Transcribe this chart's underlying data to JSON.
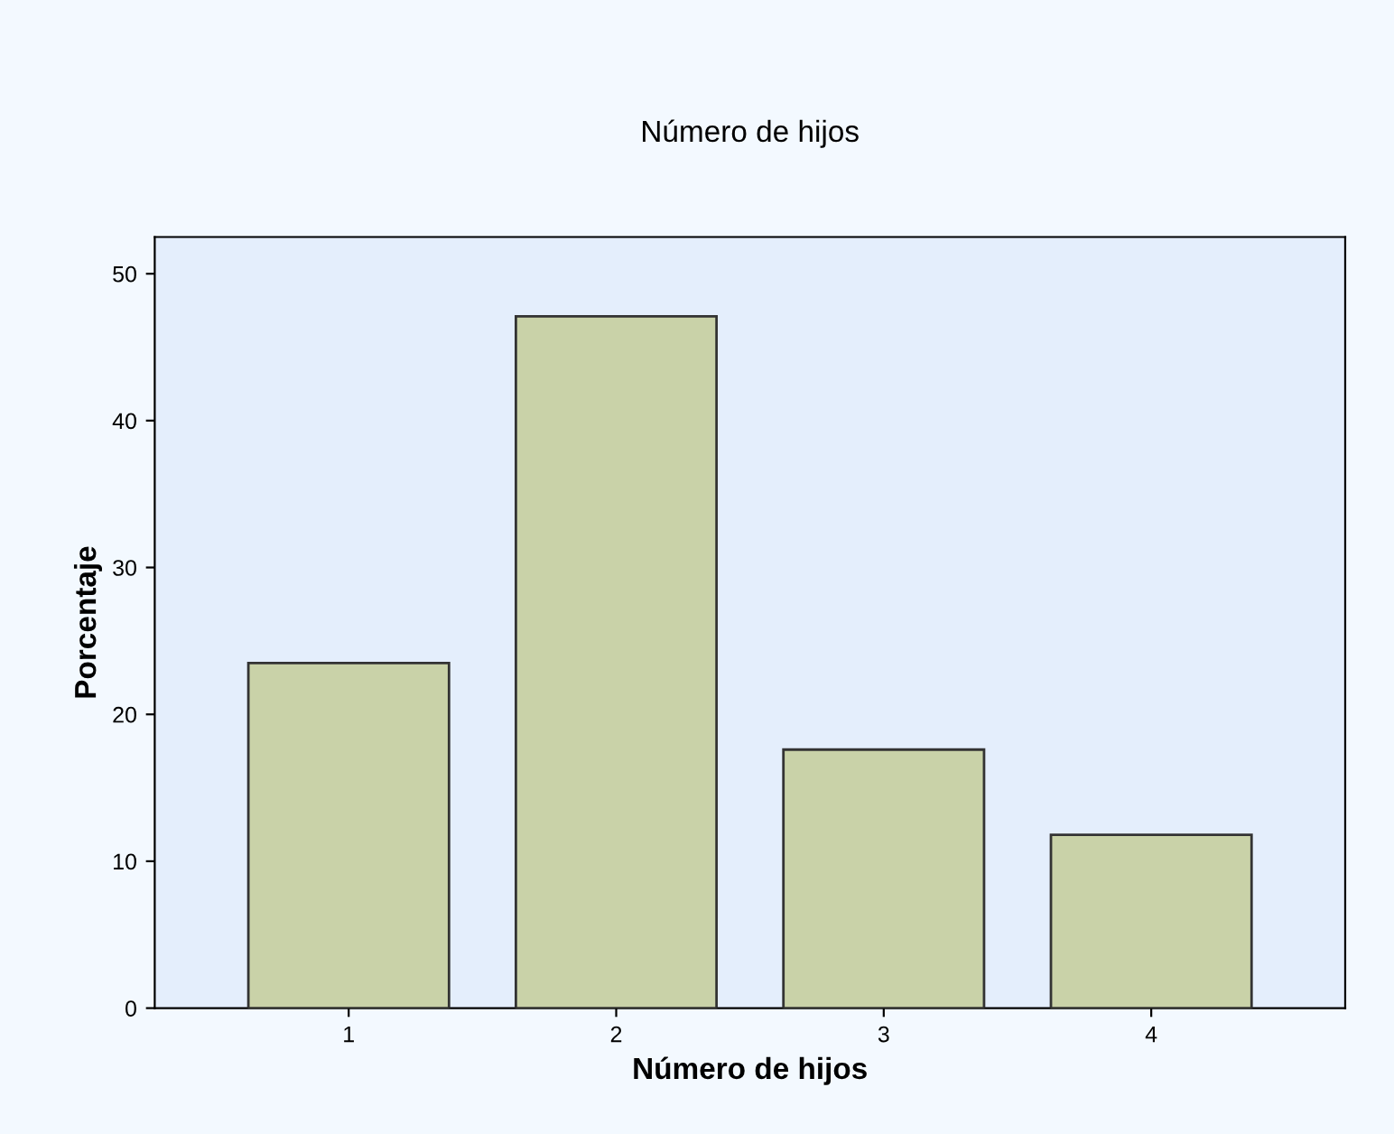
{
  "chart_data": {
    "type": "bar",
    "title": "Número de hijos",
    "xlabel": "Número de hijos",
    "ylabel": "Porcentaje",
    "categories": [
      "1",
      "2",
      "3",
      "4"
    ],
    "values": [
      23.5,
      47.1,
      17.6,
      11.8
    ],
    "color": "#c9d2a8",
    "ylim": [
      0,
      52.5
    ],
    "yticks": [
      0,
      10,
      20,
      30,
      40,
      50
    ],
    "grid": false,
    "legend": false
  }
}
